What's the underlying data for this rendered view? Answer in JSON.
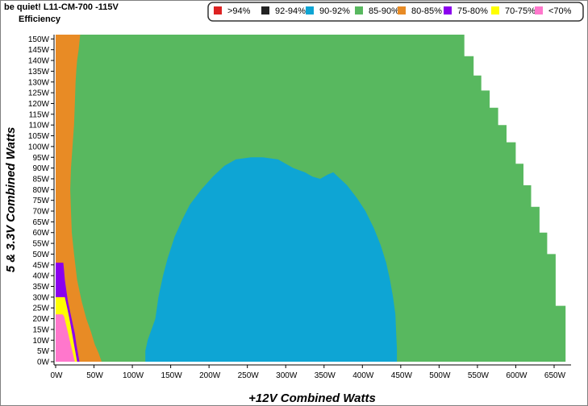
{
  "chart_data": {
    "type": "heatmap",
    "title": "be quiet! L11-CM-700 -115V",
    "subtitle": "Efficiency",
    "xlabel": "+12V Combined Watts",
    "ylabel": "5 & 3.3V Combined Watts",
    "x_unit": "W",
    "y_unit": "W",
    "xlim": [
      0,
      670
    ],
    "ylim": [
      0,
      152
    ],
    "x_ticks": [
      {
        "value": 0,
        "label": "0W"
      },
      {
        "value": 50,
        "label": "50W"
      },
      {
        "value": 100,
        "label": "100W"
      },
      {
        "value": 150,
        "label": "150W"
      },
      {
        "value": 200,
        "label": "200W"
      },
      {
        "value": 250,
        "label": "250W"
      },
      {
        "value": 300,
        "label": "300W"
      },
      {
        "value": 350,
        "label": "350W"
      },
      {
        "value": 400,
        "label": "400W"
      },
      {
        "value": 450,
        "label": "450W"
      },
      {
        "value": 500,
        "label": "500W"
      },
      {
        "value": 550,
        "label": "550W"
      },
      {
        "value": 600,
        "label": "600W"
      },
      {
        "value": 650,
        "label": "650W"
      }
    ],
    "y_ticks": [
      {
        "value": 0,
        "label": "0W"
      },
      {
        "value": 5,
        "label": "5W"
      },
      {
        "value": 10,
        "label": "10W"
      },
      {
        "value": 15,
        "label": "15W"
      },
      {
        "value": 20,
        "label": "20W"
      },
      {
        "value": 25,
        "label": "25W"
      },
      {
        "value": 30,
        "label": "30W"
      },
      {
        "value": 35,
        "label": "35W"
      },
      {
        "value": 40,
        "label": "40W"
      },
      {
        "value": 45,
        "label": "45W"
      },
      {
        "value": 50,
        "label": "50W"
      },
      {
        "value": 55,
        "label": "55W"
      },
      {
        "value": 60,
        "label": "60W"
      },
      {
        "value": 65,
        "label": "65W"
      },
      {
        "value": 70,
        "label": "70W"
      },
      {
        "value": 75,
        "label": "75W"
      },
      {
        "value": 80,
        "label": "80W"
      },
      {
        "value": 85,
        "label": "85W"
      },
      {
        "value": 90,
        "label": "90W"
      },
      {
        "value": 95,
        "label": "95W"
      },
      {
        "value": 100,
        "label": "100W"
      },
      {
        "value": 105,
        "label": "105W"
      },
      {
        "value": 110,
        "label": "110W"
      },
      {
        "value": 115,
        "label": "115W"
      },
      {
        "value": 120,
        "label": "120W"
      },
      {
        "value": 125,
        "label": "125W"
      },
      {
        "value": 130,
        "label": "130W"
      },
      {
        "value": 135,
        "label": "135W"
      },
      {
        "value": 140,
        "label": "140W"
      },
      {
        "value": 145,
        "label": "145W"
      },
      {
        "value": 150,
        "label": "150W"
      }
    ],
    "legend": [
      {
        "label": ">94%",
        "color": "#dd2222"
      },
      {
        "label": "92-94%",
        "color": "#222222"
      },
      {
        "label": "90-92%",
        "color": "#0ea5d4"
      },
      {
        "label": "85-90%",
        "color": "#58b85f"
      },
      {
        "label": "80-85%",
        "color": "#e88b25"
      },
      {
        "label": "75-80%",
        "color": "#8b00ee"
      },
      {
        "label": "70-75%",
        "color": "#ffff00"
      },
      {
        "label": "<70%",
        "color": "#ff77cc"
      }
    ],
    "legend_position": "top-right",
    "grid": false,
    "regions": [
      {
        "name": "85-90%",
        "color": "#58b85f",
        "polygon": [
          [
            0,
            0
          ],
          [
            665,
            0
          ],
          [
            665,
            26
          ],
          [
            652,
            26
          ],
          [
            652,
            50
          ],
          [
            641,
            50
          ],
          [
            641,
            60
          ],
          [
            631,
            60
          ],
          [
            631,
            72
          ],
          [
            620,
            72
          ],
          [
            620,
            82
          ],
          [
            610,
            82
          ],
          [
            610,
            92
          ],
          [
            600,
            92
          ],
          [
            600,
            102
          ],
          [
            588,
            102
          ],
          [
            588,
            110
          ],
          [
            577,
            110
          ],
          [
            577,
            118
          ],
          [
            566,
            118
          ],
          [
            566,
            126
          ],
          [
            555,
            126
          ],
          [
            555,
            133
          ],
          [
            545,
            133
          ],
          [
            545,
            142
          ],
          [
            533,
            142
          ],
          [
            533,
            152
          ],
          [
            0,
            152
          ]
        ]
      },
      {
        "name": "80-85%",
        "color": "#e88b25",
        "polygon": [
          [
            0,
            0
          ],
          [
            60,
            0
          ],
          [
            56,
            4
          ],
          [
            51,
            8
          ],
          [
            46,
            14
          ],
          [
            40,
            20
          ],
          [
            34,
            28
          ],
          [
            28,
            38
          ],
          [
            24,
            50
          ],
          [
            21,
            60
          ],
          [
            20,
            70
          ],
          [
            19,
            80
          ],
          [
            20,
            90
          ],
          [
            22,
            100
          ],
          [
            24,
            110
          ],
          [
            25,
            120
          ],
          [
            26,
            130
          ],
          [
            27,
            136
          ],
          [
            28,
            140
          ],
          [
            30,
            145
          ],
          [
            32,
            152
          ],
          [
            0,
            152
          ]
        ]
      },
      {
        "name": "75-80%",
        "color": "#8b00ee",
        "polygon": [
          [
            0,
            0
          ],
          [
            31,
            0
          ],
          [
            29,
            4
          ],
          [
            27,
            8
          ],
          [
            25,
            13
          ],
          [
            22,
            18
          ],
          [
            19,
            23
          ],
          [
            16,
            28
          ],
          [
            14,
            33
          ],
          [
            12,
            38
          ],
          [
            11,
            42
          ],
          [
            10,
            46
          ],
          [
            0,
            46
          ]
        ]
      },
      {
        "name": "70-75%",
        "color": "#ffff00",
        "polygon": [
          [
            0,
            0
          ],
          [
            28,
            0
          ],
          [
            26,
            4
          ],
          [
            24,
            8
          ],
          [
            22,
            12
          ],
          [
            20,
            16
          ],
          [
            18,
            20
          ],
          [
            15,
            25
          ],
          [
            12,
            30
          ],
          [
            0,
            30
          ]
        ]
      },
      {
        "name": "<70%",
        "color": "#ff77cc",
        "polygon": [
          [
            0,
            0
          ],
          [
            25,
            0
          ],
          [
            23,
            3
          ],
          [
            21,
            6
          ],
          [
            19,
            9
          ],
          [
            17,
            12
          ],
          [
            15,
            15
          ],
          [
            13,
            18
          ],
          [
            11,
            21
          ],
          [
            9,
            22
          ],
          [
            0,
            22
          ]
        ]
      },
      {
        "name": "90-92%",
        "color": "#0ea5d4",
        "polygon": [
          [
            117,
            0
          ],
          [
            445,
            0
          ],
          [
            445,
            6
          ],
          [
            444,
            14
          ],
          [
            443,
            22
          ],
          [
            440,
            30
          ],
          [
            436,
            38
          ],
          [
            431,
            46
          ],
          [
            424,
            54
          ],
          [
            415,
            62
          ],
          [
            404,
            70
          ],
          [
            393,
            76
          ],
          [
            380,
            82
          ],
          [
            368,
            86
          ],
          [
            362,
            88
          ],
          [
            355,
            87
          ],
          [
            345,
            85
          ],
          [
            335,
            86
          ],
          [
            325,
            88
          ],
          [
            310,
            90
          ],
          [
            290,
            94
          ],
          [
            270,
            95
          ],
          [
            255,
            95
          ],
          [
            235,
            94
          ],
          [
            220,
            91
          ],
          [
            205,
            86
          ],
          [
            190,
            80
          ],
          [
            175,
            73
          ],
          [
            165,
            66
          ],
          [
            155,
            58
          ],
          [
            146,
            48
          ],
          [
            140,
            40
          ],
          [
            134,
            30
          ],
          [
            130,
            20
          ],
          [
            120,
            10
          ],
          [
            117,
            5
          ]
        ]
      }
    ]
  }
}
